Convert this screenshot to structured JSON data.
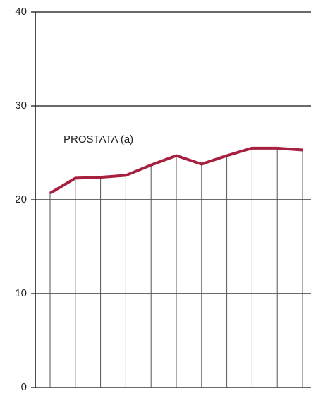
{
  "chart_data": {
    "type": "line",
    "categories": [
      null,
      null,
      null,
      null,
      null,
      null,
      null,
      null,
      null,
      null,
      null
    ],
    "series": [
      {
        "name": "PROSTATA (a)",
        "color": "#a8203f",
        "values": [
          20.7,
          22.3,
          22.4,
          22.6,
          23.7,
          24.7,
          23.8,
          24.7,
          25.5,
          25.5,
          25.3
        ]
      }
    ],
    "ylim": [
      0,
      40
    ],
    "yticks": [
      0,
      10,
      20,
      30,
      40
    ],
    "grid": true
  }
}
